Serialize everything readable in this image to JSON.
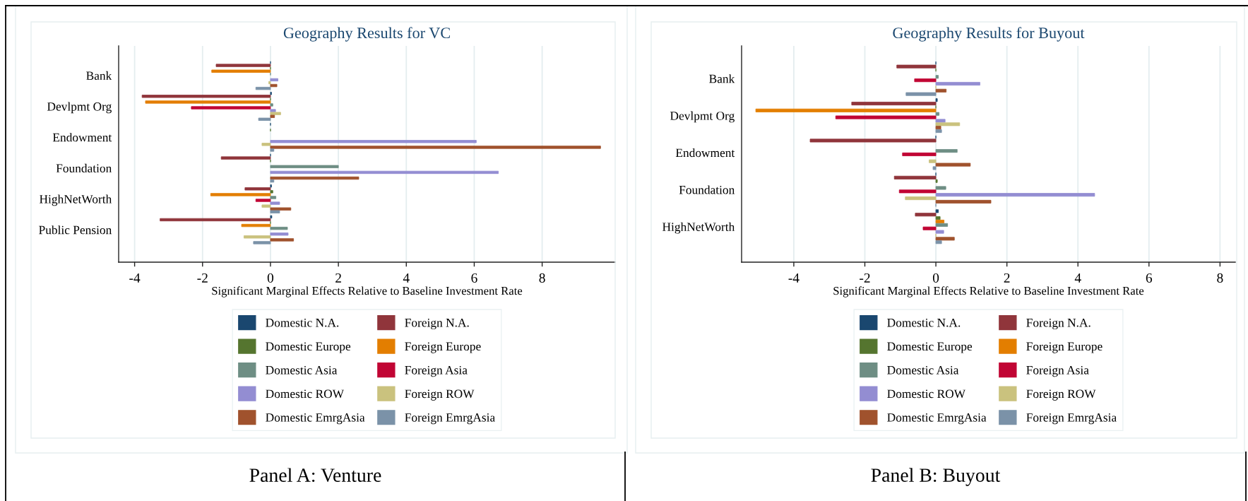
{
  "chart_data": [
    {
      "type": "bar",
      "orientation": "horizontal",
      "title": "Geography Results for VC",
      "xlabel": "Significant Marginal Effects Relative to Baseline Investment Rate",
      "categories": [
        "Bank",
        "Devlpmt Org",
        "Endowment",
        "Foundation",
        "HighNetWorth",
        "Public Pension"
      ],
      "series": [
        {
          "name": "Domestic N.A.",
          "color": "#1a476f",
          "values": [
            0,
            0.03,
            0,
            0,
            0.03,
            0.04
          ]
        },
        {
          "name": "Foreign N.A.",
          "color": "#90353b",
          "values": [
            -1.6,
            -3.78,
            null,
            -1.45,
            -0.75,
            -3.25
          ]
        },
        {
          "name": "Domestic Europe",
          "color": "#55752f",
          "values": [
            0,
            0,
            0,
            0,
            0.07,
            0
          ]
        },
        {
          "name": "Foreign Europe",
          "color": "#e37e00",
          "values": [
            -1.73,
            -3.68,
            null,
            null,
            -1.76,
            -0.85
          ]
        },
        {
          "name": "Domestic Asia",
          "color": "#6e8e84",
          "values": [
            0,
            0.07,
            null,
            2.0,
            0.16,
            0.5
          ]
        },
        {
          "name": "Foreign Asia",
          "color": "#c10534",
          "values": [
            null,
            -2.33,
            null,
            null,
            -0.43,
            null
          ]
        },
        {
          "name": "Domestic ROW",
          "color": "#938dd2",
          "values": [
            0.22,
            0.15,
            6.06,
            6.71,
            0.27,
            0.52
          ]
        },
        {
          "name": "Foreign ROW",
          "color": "#cac27e",
          "values": [
            -0.05,
            0.3,
            -0.25,
            null,
            -0.25,
            -0.78
          ]
        },
        {
          "name": "Domestic EmrgAsia",
          "color": "#a0522d",
          "values": [
            0.19,
            0.12,
            9.72,
            2.6,
            0.6,
            0.68
          ]
        },
        {
          "name": "Foreign EmrgAsia",
          "color": "#7b92a8",
          "values": [
            -0.43,
            -0.35,
            0.1,
            0.1,
            0.27,
            -0.5
          ]
        }
      ],
      "xlim": [
        -4.47,
        10.15
      ],
      "xticks": [
        -4,
        -2,
        0,
        2,
        4,
        6,
        8
      ],
      "grid": "x",
      "legend": "bottom",
      "annotations": [
        "Panel A: Venture"
      ]
    },
    {
      "type": "bar",
      "orientation": "horizontal",
      "title": "Geography Results for Buyout",
      "xlabel": "Significant Marginal Effects Relative to Baseline Investment Rate",
      "categories": [
        "Bank",
        "Devlpmt Org",
        "Endowment",
        "Foundation",
        "HighNetWorth"
      ],
      "series": [
        {
          "name": "Domestic N.A.",
          "color": "#1a476f",
          "values": [
            0,
            0.04,
            0,
            0,
            0.07
          ]
        },
        {
          "name": "Foreign N.A.",
          "color": "#90353b",
          "values": [
            -1.1,
            -2.37,
            -3.54,
            -1.17,
            -0.58
          ]
        },
        {
          "name": "Domestic Europe",
          "color": "#55752f",
          "values": [
            0,
            0,
            null,
            0.04,
            0.12
          ]
        },
        {
          "name": "Foreign Europe",
          "color": "#e37e00",
          "values": [
            null,
            -5.07,
            null,
            null,
            0.23
          ]
        },
        {
          "name": "Domestic Asia",
          "color": "#6e8e84",
          "values": [
            0.07,
            0.09,
            0.6,
            0.28,
            0.33
          ]
        },
        {
          "name": "Foreign Asia",
          "color": "#c10534",
          "values": [
            -0.6,
            -2.82,
            -0.94,
            -1.03,
            -0.36
          ]
        },
        {
          "name": "Domestic ROW",
          "color": "#938dd2",
          "values": [
            1.24,
            0.26,
            null,
            4.47,
            0.22
          ]
        },
        {
          "name": "Foreign ROW",
          "color": "#cac27e",
          "values": [
            0,
            0.67,
            -0.19,
            -0.86,
            0
          ]
        },
        {
          "name": "Domestic EmrgAsia",
          "color": "#a0522d",
          "values": [
            0.29,
            0.14,
            0.97,
            1.55,
            0.52
          ]
        },
        {
          "name": "Foreign EmrgAsia",
          "color": "#7b92a8",
          "values": [
            -0.84,
            0.16,
            -0.08,
            0,
            0.16
          ]
        }
      ],
      "xlim": [
        -5.47,
        8.43
      ],
      "xticks": [
        -4,
        -2,
        0,
        2,
        4,
        6,
        8
      ],
      "grid": "x",
      "legend": "bottom",
      "annotations": [
        "Panel B: Buyout"
      ]
    }
  ]
}
